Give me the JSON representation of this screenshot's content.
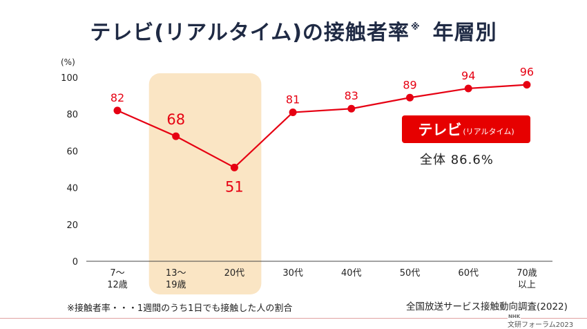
{
  "title": "テレビ(リアルタイム)の接触者率",
  "title_mark": "※",
  "title_suffix": "年層別",
  "chart_data": {
    "type": "line",
    "categories": [
      [
        "7〜",
        "12歳"
      ],
      [
        "13〜",
        "19歳"
      ],
      [
        "20代"
      ],
      [
        "30代"
      ],
      [
        "40代"
      ],
      [
        "50代"
      ],
      [
        "60代"
      ],
      [
        "70歳",
        "以上"
      ]
    ],
    "values": [
      82,
      68,
      51,
      81,
      83,
      89,
      94,
      96
    ],
    "ylabel": "(%)",
    "ylim": [
      0,
      100
    ],
    "yticks": [
      0,
      20,
      40,
      60,
      80,
      100
    ],
    "line_color": "#e60012",
    "highlight_band": {
      "from_category": 1,
      "to_category": 2,
      "color": "#fae5c4"
    }
  },
  "badge": {
    "label": "テレビ",
    "sub": "(リアルタイム)"
  },
  "total_text": "全体 86.6%",
  "note_left": "※接触者率・・・1週間のうち1日でも接触した人の割合",
  "note_right": "全国放送サービス接触動向調査(2022)",
  "footer": {
    "logo": "NHK",
    "text": "文研フォーラム2023"
  }
}
